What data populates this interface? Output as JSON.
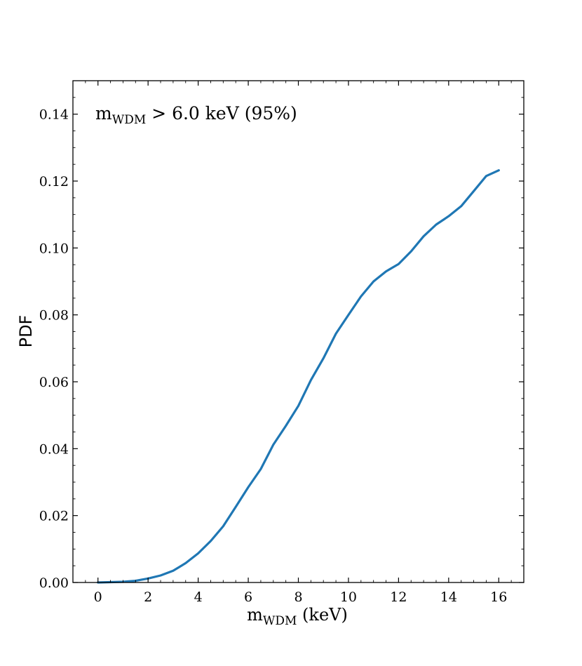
{
  "chart_data": {
    "type": "line",
    "xlabel": "m",
    "xlabel_sub": "WDM",
    "xlabel_unit": " (keV)",
    "ylabel": "PDF",
    "annotation": {
      "prefix": "m",
      "sub": "WDM",
      "text": " > 6.0 keV (95%)"
    },
    "xlim": [
      -1,
      17
    ],
    "ylim": [
      0,
      0.15
    ],
    "xticks": [
      0,
      2,
      4,
      6,
      8,
      10,
      12,
      14,
      16
    ],
    "xtick_labels": [
      "0",
      "2",
      "4",
      "6",
      "8",
      "10",
      "12",
      "14",
      "16"
    ],
    "yticks": [
      0,
      0.02,
      0.04,
      0.06,
      0.08,
      0.1,
      0.12,
      0.14
    ],
    "ytick_labels": [
      "0.00",
      "0.02",
      "0.04",
      "0.06",
      "0.08",
      "0.10",
      "0.12",
      "0.14"
    ],
    "grid": false,
    "legend": "none",
    "series": [
      {
        "color": "#1f77b4",
        "x": [
          0,
          0.5,
          1,
          1.5,
          2,
          2.5,
          3,
          3.5,
          4,
          4.5,
          5,
          5.5,
          6,
          6.5,
          7,
          7.5,
          8,
          8.5,
          9,
          9.5,
          10,
          10.5,
          11,
          11.5,
          12,
          12.5,
          13,
          13.5,
          14,
          14.5,
          15,
          15.5,
          16
        ],
        "y": [
          0.0,
          0.0001,
          0.0002,
          0.0005,
          0.0012,
          0.0021,
          0.0035,
          0.0058,
          0.0087,
          0.0124,
          0.0168,
          0.0226,
          0.0285,
          0.0339,
          0.0412,
          0.0468,
          0.0528,
          0.0605,
          0.067,
          0.0744,
          0.08,
          0.0855,
          0.09,
          0.093,
          0.0952,
          0.099,
          0.1035,
          0.107,
          0.1095,
          0.1125,
          0.117,
          0.1215,
          0.1232
        ]
      }
    ]
  }
}
